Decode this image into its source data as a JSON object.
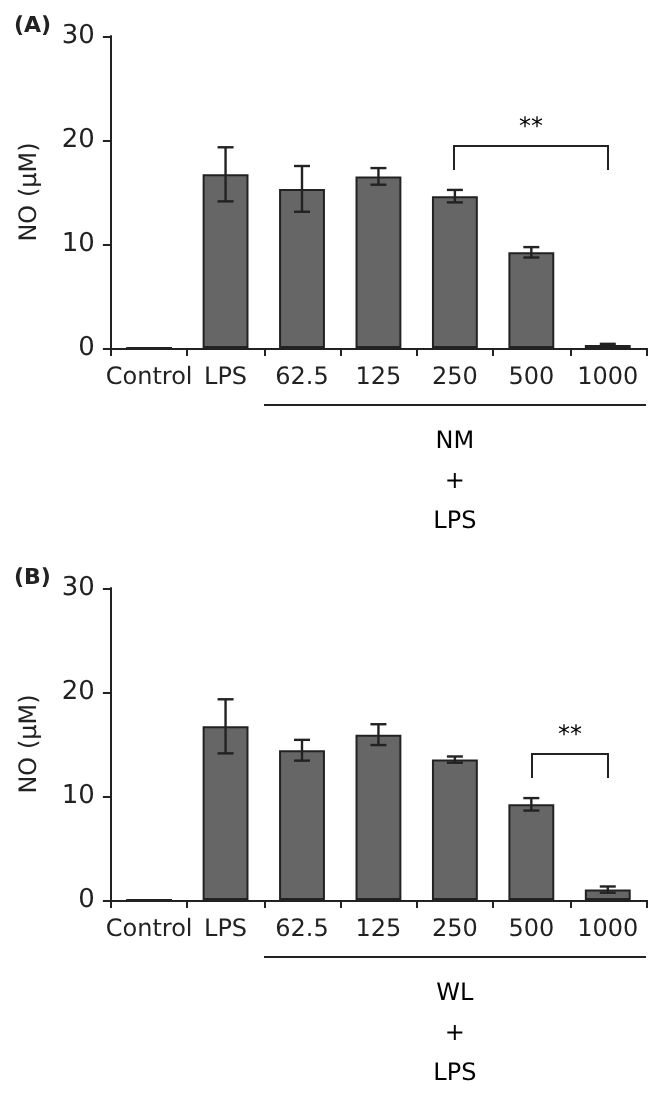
{
  "chart_data": [
    {
      "type": "bar",
      "title": "(A)",
      "ylabel": "NO (μM)",
      "categories": [
        "Control",
        "LPS",
        "62.5",
        "125",
        "250",
        "500",
        "1000"
      ],
      "values": [
        0,
        16.7,
        15.3,
        16.5,
        14.6,
        9.2,
        0.3
      ],
      "errors": [
        null,
        2.6,
        2.2,
        0.8,
        0.6,
        0.5,
        0.1
      ],
      "color": "#666666",
      "ylim": [
        0,
        30
      ],
      "yticks": [
        0,
        10,
        20,
        30
      ],
      "grid": false,
      "annotations": [
        "**",
        "NM\n+\nLPS"
      ]
    },
    {
      "type": "bar",
      "title": "(B)",
      "ylabel": "NO (μM)",
      "categories": [
        "Control",
        "LPS",
        "62.5",
        "125",
        "250",
        "500",
        "1000"
      ],
      "values": [
        0,
        16.7,
        14.4,
        15.9,
        13.5,
        9.2,
        1.0
      ],
      "errors": [
        null,
        2.6,
        1.0,
        1.0,
        0.3,
        0.6,
        0.3
      ],
      "color": "#666666",
      "ylim": [
        0,
        30
      ],
      "yticks": [
        0,
        10,
        20,
        30
      ],
      "grid": false,
      "annotations": [
        "**",
        "WL\n+\nLPS"
      ]
    }
  ]
}
